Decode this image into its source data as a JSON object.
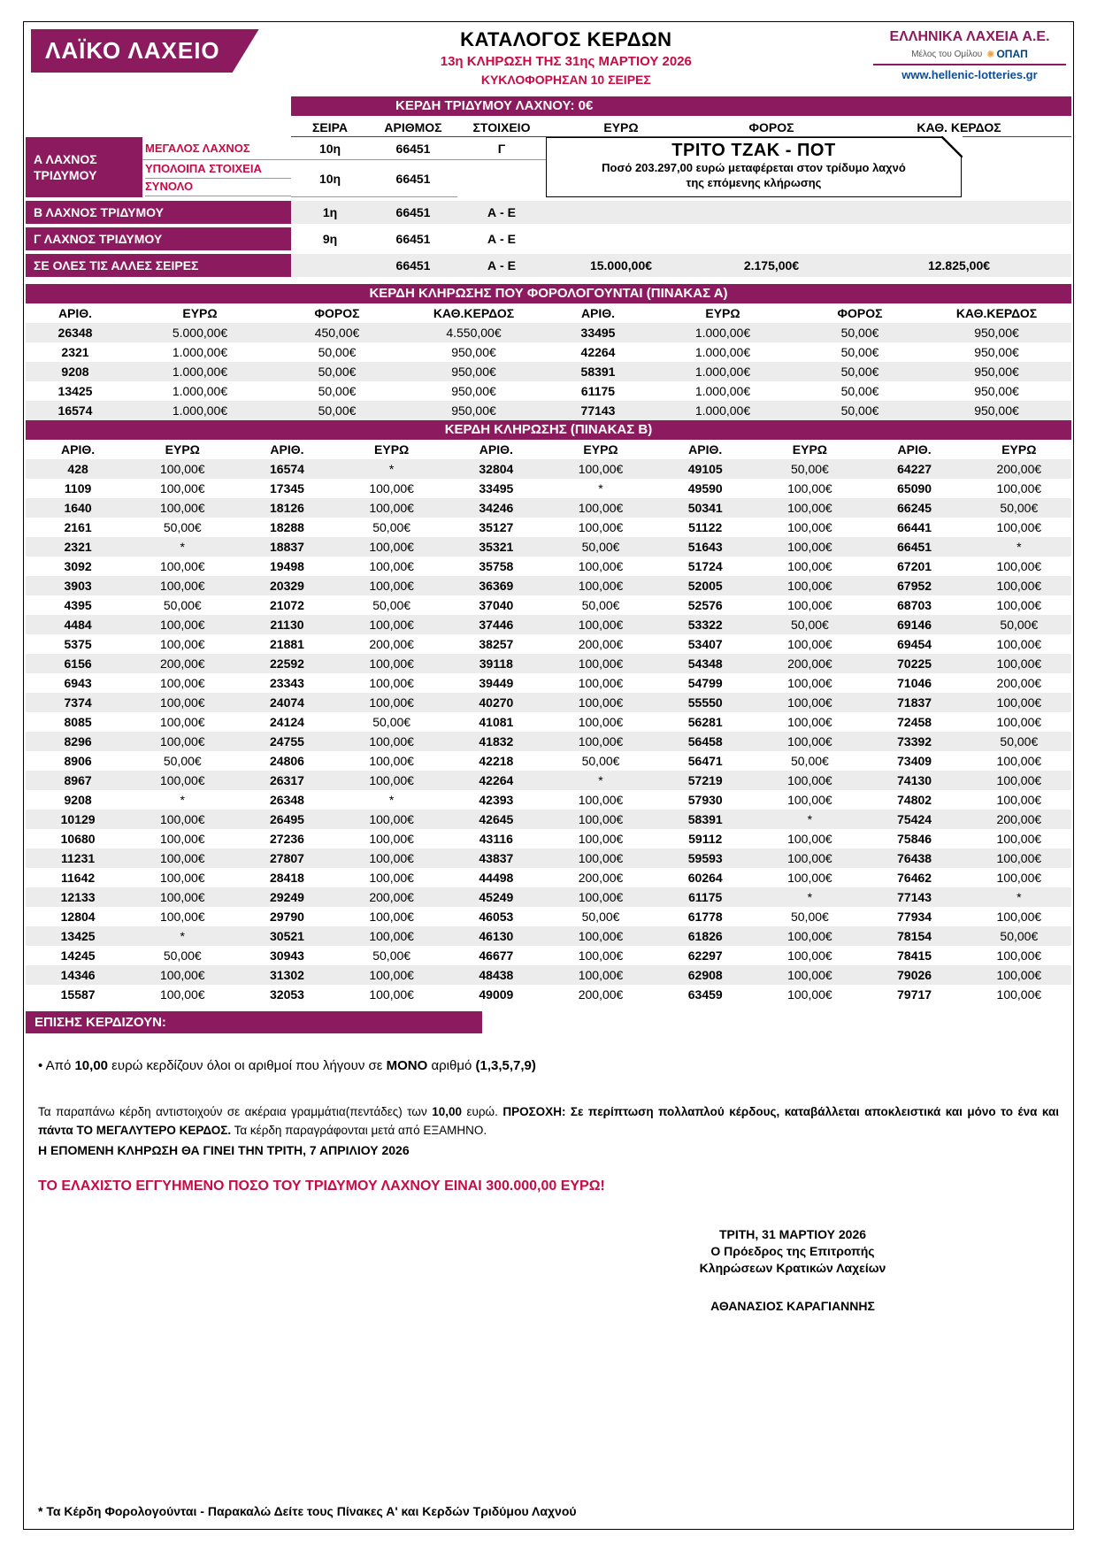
{
  "colors": {
    "purple": "#8b1b5e",
    "crimson": "#c60c46",
    "row_gray": "#ececec"
  },
  "header": {
    "logo_text": "ΛΑΪΚΟ ΛΑΧΕΙΟ",
    "title": "ΚΑΤΑΛΟΓΟΣ ΚΕΡΔΩΝ",
    "draw_info": "13η ΚΛΗΡΩΣΗ ΤΗΣ 31ης ΜΑΡΤΙΟΥ 2026",
    "series_info": "ΚΥΚΛΟΦΟΡΗΣΑΝ 10 ΣΕΙΡΕΣ",
    "company_name": "ΕΛΛΗΝΙΚΑ ΛΑΧΕΙΑ Α.Ε.",
    "company_member": "Μέλος του Ομίλου",
    "opap": "ΟΠΑΠ",
    "website": "www.hellenic-lotteries.gr"
  },
  "triple_banner": "ΚΕΡΔΗ ΤΡΙΔΥΜΟΥ ΛΑΧΝΟΥ: 0€",
  "triple": {
    "headers": [
      "ΣΕΙΡΑ",
      "ΑΡΙΘΜΟΣ",
      "ΣΤΟΙΧΕΙΟ",
      "ΕΥΡΩ",
      "ΦΟΡΟΣ",
      "ΚΑΘ. ΚΕΡΔΟΣ"
    ],
    "a_label_1": "Α ΛΑΧΝΟΣ",
    "a_label_2": "ΤΡΙΔΥΜΟΥ",
    "big_prize_label": "ΜΕΓΑΛΟΣ ΛΑΧΝΟΣ",
    "big_prize": {
      "seira": "10η",
      "number": "66451",
      "stoixeio": "Γ"
    },
    "rest_label_1": "ΥΠΟΛΟΙΠΑ ΣΤΟΙΧΕΙΑ",
    "rest_label_2": "ΣΥΝΟΛΟ",
    "rest": {
      "seira": "10η",
      "number": "66451"
    },
    "jackpot_title": "ΤΡΙΤΟ ΤΖΑΚ - ΠΟΤ",
    "jackpot_text_1": "Ποσό 203.297,00 ευρώ μεταφέρεται στον τρίδυμο λαχνό",
    "jackpot_text_2": "της επόμενης κλήρωσης",
    "b_label": "Β ΛΑΧΝΟΣ ΤΡΙΔΥΜΟΥ",
    "b_row": {
      "seira": "1η",
      "number": "66451",
      "stoixeio": "Α - Ε"
    },
    "g_label": "Γ ΛΑΧΝΟΣ ΤΡΙΔΥΜΟΥ",
    "g_row": {
      "seira": "9η",
      "number": "66451",
      "stoixeio": "Α - Ε"
    },
    "all_label": "ΣΕ ΟΛΕΣ ΤΙΣ ΑΛΛΕΣ ΣΕΙΡΕΣ",
    "all_row": {
      "number": "66451",
      "stoixeio": "Α - Ε",
      "euro": "15.000,00€",
      "tax": "2.175,00€",
      "net": "12.825,00€"
    }
  },
  "table_a": {
    "banner": "ΚΕΡΔΗ ΚΛΗΡΩΣΗΣ ΠΟΥ ΦΟΡΟΛΟΓΟΥΝΤΑΙ (ΠΙΝΑΚΑΣ Α)",
    "headers": [
      "ΑΡΙΘ.",
      "ΕΥΡΩ",
      "ΦΟΡΟΣ",
      "ΚΑΘ.ΚΕΡΔΟΣ",
      "ΑΡΙΘ.",
      "ΕΥΡΩ",
      "ΦΟΡΟΣ",
      "ΚΑΘ.ΚΕΡΔΟΣ"
    ],
    "rows": [
      [
        "26348",
        "5.000,00€",
        "450,00€",
        "4.550,00€",
        "33495",
        "1.000,00€",
        "50,00€",
        "950,00€"
      ],
      [
        "2321",
        "1.000,00€",
        "50,00€",
        "950,00€",
        "42264",
        "1.000,00€",
        "50,00€",
        "950,00€"
      ],
      [
        "9208",
        "1.000,00€",
        "50,00€",
        "950,00€",
        "58391",
        "1.000,00€",
        "50,00€",
        "950,00€"
      ],
      [
        "13425",
        "1.000,00€",
        "50,00€",
        "950,00€",
        "61175",
        "1.000,00€",
        "50,00€",
        "950,00€"
      ],
      [
        "16574",
        "1.000,00€",
        "50,00€",
        "950,00€",
        "77143",
        "1.000,00€",
        "50,00€",
        "950,00€"
      ]
    ]
  },
  "table_b": {
    "banner": "ΚΕΡΔΗ ΚΛΗΡΩΣΗΣ (ΠΙΝΑΚΑΣ Β)",
    "headers": [
      "ΑΡΙΘ.",
      "ΕΥΡΩ",
      "ΑΡΙΘ.",
      "ΕΥΡΩ",
      "ΑΡΙΘ.",
      "ΕΥΡΩ",
      "ΑΡΙΘ.",
      "ΕΥΡΩ",
      "ΑΡΙΘ.",
      "ΕΥΡΩ"
    ],
    "rows": [
      [
        "428",
        "100,00€",
        "16574",
        "*",
        "32804",
        "100,00€",
        "49105",
        "50,00€",
        "64227",
        "200,00€"
      ],
      [
        "1109",
        "100,00€",
        "17345",
        "100,00€",
        "33495",
        "*",
        "49590",
        "100,00€",
        "65090",
        "100,00€"
      ],
      [
        "1640",
        "100,00€",
        "18126",
        "100,00€",
        "34246",
        "100,00€",
        "50341",
        "100,00€",
        "66245",
        "50,00€"
      ],
      [
        "2161",
        "50,00€",
        "18288",
        "50,00€",
        "35127",
        "100,00€",
        "51122",
        "100,00€",
        "66441",
        "100,00€"
      ],
      [
        "2321",
        "*",
        "18837",
        "100,00€",
        "35321",
        "50,00€",
        "51643",
        "100,00€",
        "66451",
        "*"
      ],
      [
        "3092",
        "100,00€",
        "19498",
        "100,00€",
        "35758",
        "100,00€",
        "51724",
        "100,00€",
        "67201",
        "100,00€"
      ],
      [
        "3903",
        "100,00€",
        "20329",
        "100,00€",
        "36369",
        "100,00€",
        "52005",
        "100,00€",
        "67952",
        "100,00€"
      ],
      [
        "4395",
        "50,00€",
        "21072",
        "50,00€",
        "37040",
        "50,00€",
        "52576",
        "100,00€",
        "68703",
        "100,00€"
      ],
      [
        "4484",
        "100,00€",
        "21130",
        "100,00€",
        "37446",
        "100,00€",
        "53322",
        "50,00€",
        "69146",
        "50,00€"
      ],
      [
        "5375",
        "100,00€",
        "21881",
        "200,00€",
        "38257",
        "200,00€",
        "53407",
        "100,00€",
        "69454",
        "100,00€"
      ],
      [
        "6156",
        "200,00€",
        "22592",
        "100,00€",
        "39118",
        "100,00€",
        "54348",
        "200,00€",
        "70225",
        "100,00€"
      ],
      [
        "6943",
        "100,00€",
        "23343",
        "100,00€",
        "39449",
        "100,00€",
        "54799",
        "100,00€",
        "71046",
        "200,00€"
      ],
      [
        "7374",
        "100,00€",
        "24074",
        "100,00€",
        "40270",
        "100,00€",
        "55550",
        "100,00€",
        "71837",
        "100,00€"
      ],
      [
        "8085",
        "100,00€",
        "24124",
        "50,00€",
        "41081",
        "100,00€",
        "56281",
        "100,00€",
        "72458",
        "100,00€"
      ],
      [
        "8296",
        "100,00€",
        "24755",
        "100,00€",
        "41832",
        "100,00€",
        "56458",
        "100,00€",
        "73392",
        "50,00€"
      ],
      [
        "8906",
        "50,00€",
        "24806",
        "100,00€",
        "42218",
        "50,00€",
        "56471",
        "50,00€",
        "73409",
        "100,00€"
      ],
      [
        "8967",
        "100,00€",
        "26317",
        "100,00€",
        "42264",
        "*",
        "57219",
        "100,00€",
        "74130",
        "100,00€"
      ],
      [
        "9208",
        "*",
        "26348",
        "*",
        "42393",
        "100,00€",
        "57930",
        "100,00€",
        "74802",
        "100,00€"
      ],
      [
        "10129",
        "100,00€",
        "26495",
        "100,00€",
        "42645",
        "100,00€",
        "58391",
        "*",
        "75424",
        "200,00€"
      ],
      [
        "10680",
        "100,00€",
        "27236",
        "100,00€",
        "43116",
        "100,00€",
        "59112",
        "100,00€",
        "75846",
        "100,00€"
      ],
      [
        "11231",
        "100,00€",
        "27807",
        "100,00€",
        "43837",
        "100,00€",
        "59593",
        "100,00€",
        "76438",
        "100,00€"
      ],
      [
        "11642",
        "100,00€",
        "28418",
        "100,00€",
        "44498",
        "200,00€",
        "60264",
        "100,00€",
        "76462",
        "100,00€"
      ],
      [
        "12133",
        "100,00€",
        "29249",
        "200,00€",
        "45249",
        "100,00€",
        "61175",
        "*",
        "77143",
        "*"
      ],
      [
        "12804",
        "100,00€",
        "29790",
        "100,00€",
        "46053",
        "50,00€",
        "61778",
        "50,00€",
        "77934",
        "100,00€"
      ],
      [
        "13425",
        "*",
        "30521",
        "100,00€",
        "46130",
        "100,00€",
        "61826",
        "100,00€",
        "78154",
        "50,00€"
      ],
      [
        "14245",
        "50,00€",
        "30943",
        "50,00€",
        "46677",
        "100,00€",
        "62297",
        "100,00€",
        "78415",
        "100,00€"
      ],
      [
        "14346",
        "100,00€",
        "31302",
        "100,00€",
        "48438",
        "100,00€",
        "62908",
        "100,00€",
        "79026",
        "100,00€"
      ],
      [
        "15587",
        "100,00€",
        "32053",
        "100,00€",
        "49009",
        "200,00€",
        "63459",
        "100,00€",
        "79717",
        "100,00€"
      ]
    ]
  },
  "also_win": {
    "banner": "ΕΠΙΣΗΣ ΚΕΡΔΙΖΟΥΝ:",
    "bullet_segments": [
      {
        "t": "• Από ",
        "b": false
      },
      {
        "t": "10,00",
        "b": true
      },
      {
        "t": " ευρώ κερδίζουν όλοι οι αριθμοί που λήγουν σε ",
        "b": false
      },
      {
        "t": "ΜΟΝΟ",
        "b": true
      },
      {
        "t": " αριθμό ",
        "b": false
      },
      {
        "t": "(1,3,5,7,9)",
        "b": true
      }
    ],
    "para_segments": [
      {
        "t": "Τα παραπάνω κέρδη αντιστοιχούν σε ακέραια γραμμάτια(πεντάδες) των ",
        "b": false
      },
      {
        "t": "10,00",
        "b": true
      },
      {
        "t": " ευρώ. ",
        "b": false
      },
      {
        "t": "ΠΡΟΣΟΧΗ: Σε περίπτωση πολλαπλού κέρδους, καταβάλλεται αποκλειστικά και μόνο το ένα και πάντα ΤΟ ΜΕΓΑΛΥΤΕΡΟ ΚΕΡΔΟΣ.",
        "b": true
      },
      {
        "t": " Τα κέρδη παραγράφονται μετά από ΕΞΑΜΗΝΟ.",
        "b": false
      }
    ],
    "next_draw": "Η ΕΠΟΜΕΝΗ ΚΛΗΡΩΣΗ ΘΑ ΓΙΝΕΙ ΤΗΝ ΤΡΙΤΗ, 7 ΑΠΡΙΛΙΟΥ 2026",
    "guarantee": "ΤΟ ΕΛΑΧΙΣΤΟ ΕΓΓΥΗΜΕΝΟ ΠΟΣΟ ΤΟΥ ΤΡΙΔΥΜΟΥ ΛΑΧΝΟΥ ΕΙΝΑΙ 300.000,00 ΕΥΡΩ!"
  },
  "signature": {
    "date": "ΤΡΙΤΗ, 31 ΜΑΡΤΙΟΥ 2026",
    "line1": "Ο Πρόεδρος της Επιτροπής",
    "line2": "Κληρώσεων Κρατικών Λαχείων",
    "name": "ΑΘΑΝΑΣΙΟΣ ΚΑΡΑΓΙΑΝΝΗΣ"
  },
  "footnote": "* Τα Κέρδη Φορολογούνται - Παρακαλώ Δείτε τους Πίνακες Α' και Κερδών Τριδύμου Λαχνού"
}
